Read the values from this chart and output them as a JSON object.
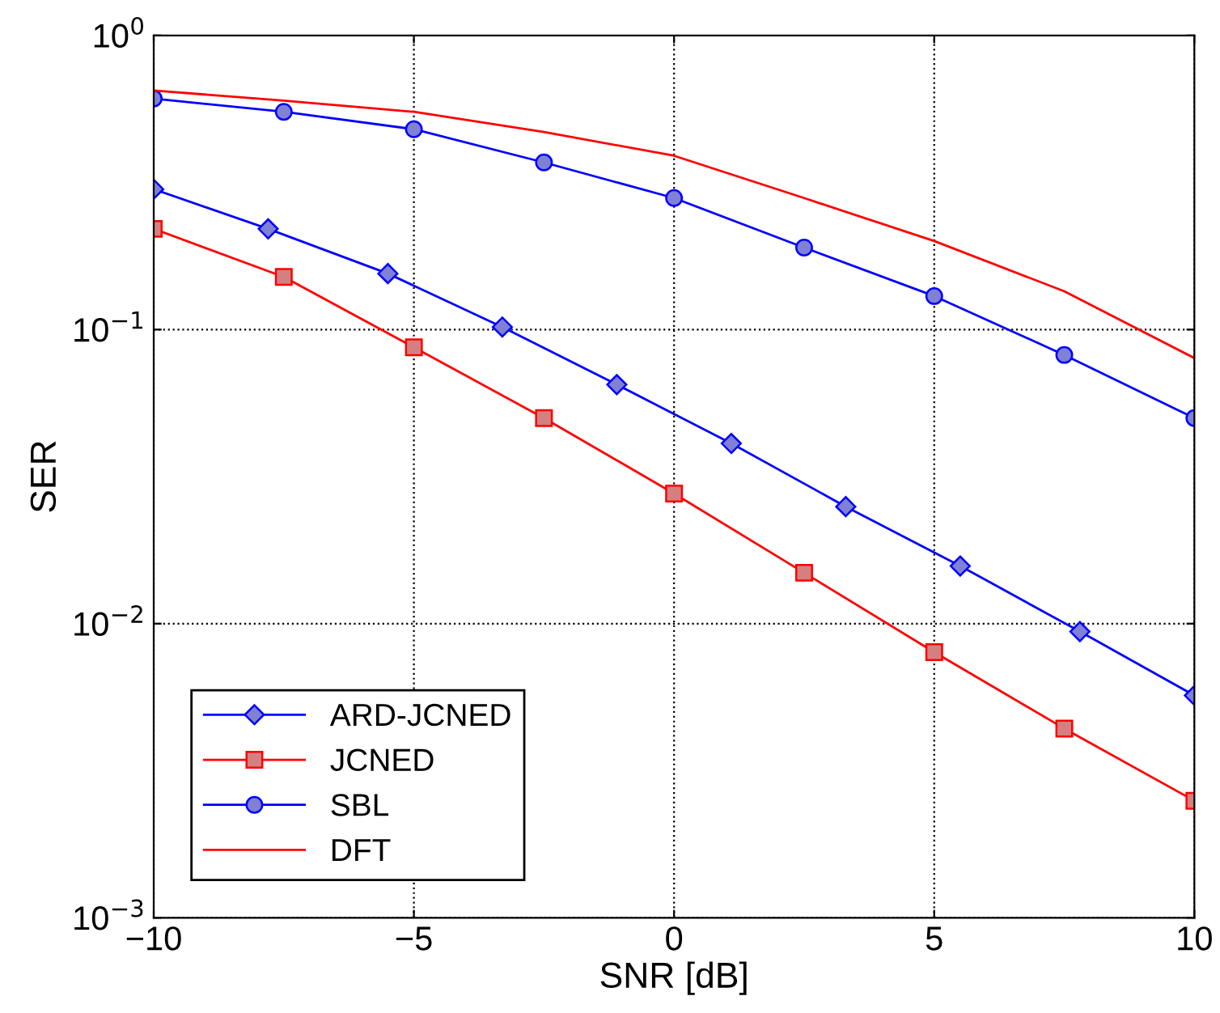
{
  "chart_data": {
    "type": "line",
    "xlabel": "SNR [dB]",
    "ylabel": "SER",
    "log": "y",
    "grid": true,
    "legend": "bottom left",
    "xlim": [
      -10,
      10
    ],
    "xticks": [
      {
        "value": -10,
        "label": "−10"
      },
      {
        "value": -5,
        "label": "−5"
      },
      0,
      5,
      10
    ],
    "ylim": [
      0.001,
      1
    ],
    "yticks": [
      {
        "value": 0.001,
        "label": "10$^{−3}$"
      },
      {
        "value": 0.01,
        "label": "10$^{−2}$"
      },
      {
        "value": 0.1,
        "label": "10$^{−1}$"
      },
      {
        "value": 1,
        "label": "10$^{0}$"
      }
    ],
    "series": [
      {
        "name": "ARD-JCNED",
        "color": "#0000ff",
        "marker": "diamond",
        "x": [
          -10,
          -7.8,
          -5.5,
          -3.3,
          -1.1,
          1.1,
          3.3,
          5.5,
          7.8,
          10
        ],
        "values": [
          0.3,
          0.22,
          0.155,
          0.102,
          0.065,
          0.041,
          0.025,
          0.0157,
          0.0094,
          0.0057
        ]
      },
      {
        "name": "JCNED",
        "color": "#ff0000",
        "marker": "square",
        "x": [
          -10,
          -7.5,
          -5,
          -2.5,
          0,
          2.5,
          5,
          7.5,
          10
        ],
        "values": [
          0.22,
          0.151,
          0.087,
          0.05,
          0.0277,
          0.0149,
          0.008,
          0.0044,
          0.0025
        ]
      },
      {
        "name": "SBL",
        "color": "#0000ff",
        "marker": "circle",
        "x": [
          -10,
          -7.5,
          -5,
          -2.5,
          0,
          2.5,
          5,
          7.5,
          10
        ],
        "values": [
          0.61,
          0.55,
          0.48,
          0.37,
          0.28,
          0.19,
          0.13,
          0.082,
          0.05
        ]
      },
      {
        "name": "DFT",
        "color": "#ff0000",
        "marker": "none",
        "x": [
          -10,
          -7.5,
          -5,
          -2.5,
          0,
          2.5,
          5,
          7.5,
          10
        ],
        "values": [
          0.65,
          0.6,
          0.55,
          0.47,
          0.39,
          0.28,
          0.2,
          0.135,
          0.08
        ]
      }
    ]
  }
}
